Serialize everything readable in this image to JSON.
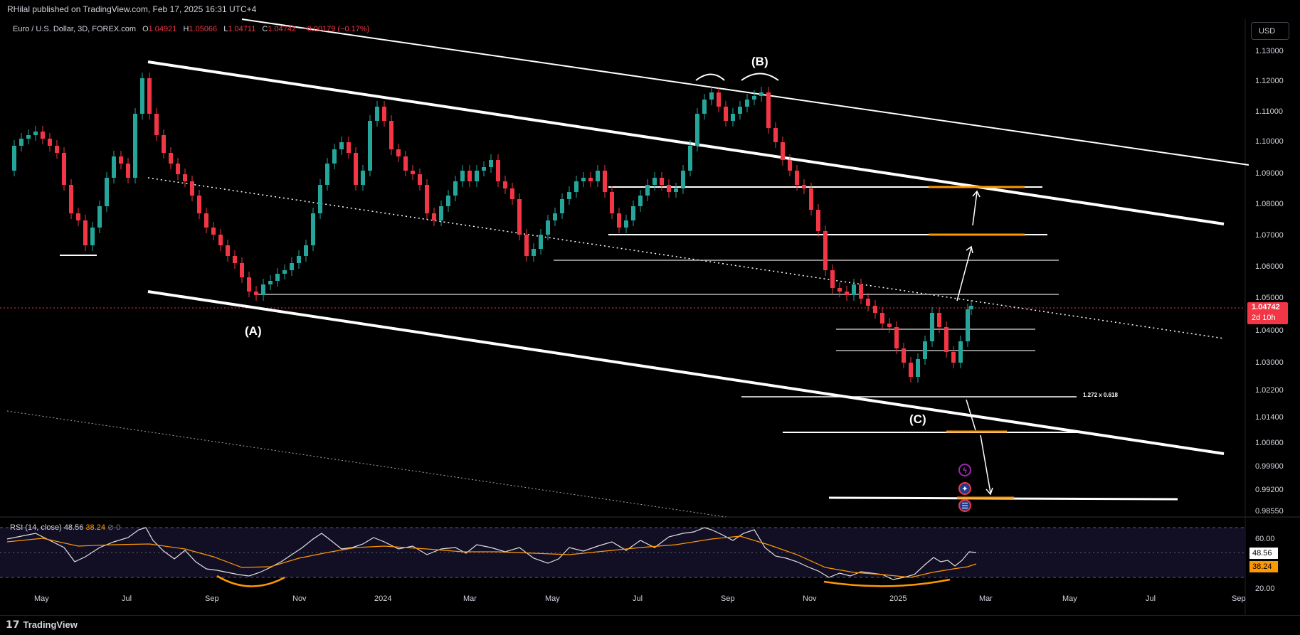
{
  "header": {
    "published": "RHilal published on TradingView.com, Feb 17, 2025 16:31 UTC+4"
  },
  "legend": {
    "symbol": "Euro / U.S. Dollar, 3D, FOREX.com",
    "open_label": "O",
    "open": "1.04921",
    "high_label": "H",
    "high": "1.05066",
    "low_label": "L",
    "low": "1.04711",
    "close_label": "C",
    "close": "1.04742",
    "change": "−0.00179 (−0.17%)"
  },
  "currency_button": "USD",
  "price_tag": {
    "price": "1.04742",
    "countdown": "2d 10h"
  },
  "y_axis_ticks": [
    "1.13000",
    "1.12000",
    "1.11000",
    "1.10000",
    "1.09000",
    "1.08000",
    "1.07000",
    "1.06000",
    "1.05000",
    "1.04000",
    "1.03000",
    "1.02200",
    "1.01400",
    "1.00600",
    "0.99900",
    "0.99200",
    "0.98550"
  ],
  "x_axis_ticks": [
    "May",
    "Jul",
    "Sep",
    "Nov",
    "2024",
    "Mar",
    "May",
    "Jul",
    "Sep",
    "Nov",
    "2025",
    "Mar",
    "May",
    "Jul",
    "Sep"
  ],
  "annotations": {
    "wave_a": "(A)",
    "wave_b": "(B)",
    "wave_c": "(C)",
    "fib_label": "1.272 x 0.618"
  },
  "rsi": {
    "title": "RSI (14, close)",
    "value": "48.56",
    "ma_value": "38.24",
    "zero": "0",
    "ticks": [
      "60.00",
      "20.00"
    ]
  },
  "footer": {
    "brand": "TradingView"
  },
  "colors": {
    "up": "#26a69a",
    "down": "#f23645",
    "orange": "#ff9800",
    "background": "#000000"
  }
}
